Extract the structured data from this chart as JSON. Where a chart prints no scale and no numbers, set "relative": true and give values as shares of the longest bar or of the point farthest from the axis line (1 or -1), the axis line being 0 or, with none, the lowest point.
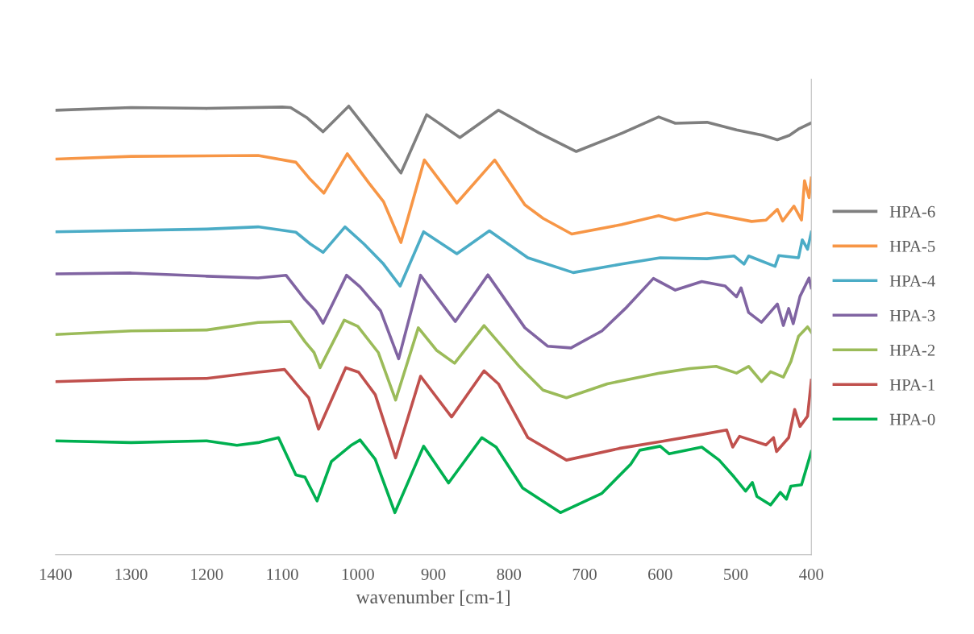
{
  "chart_data": {
    "type": "line",
    "xlabel": "wavenumber [cm-1]",
    "relative": true,
    "xlim": [
      1400,
      400
    ],
    "xticks": [
      1400,
      1300,
      1200,
      1100,
      1000,
      900,
      800,
      700,
      600,
      500,
      400
    ],
    "tick_labels": "x",
    "grid": false,
    "legend": "right",
    "marker": "none",
    "line_style": "solid",
    "series": [
      {
        "name": "HPA-6",
        "color": "#7f7f7f",
        "x": [
          1400,
          1300,
          1200,
          1100,
          1089,
          1068,
          1046,
          1012,
          977,
          943,
          909,
          865,
          814,
          760,
          711,
          650,
          602,
          580,
          538,
          499,
          464,
          445,
          429,
          417,
          401
        ],
        "values": [
          0.991,
          0.997,
          0.995,
          0.998,
          0.997,
          0.975,
          0.943,
          1.0,
          0.925,
          0.851,
          0.981,
          0.93,
          0.991,
          0.94,
          0.899,
          0.94,
          0.976,
          0.962,
          0.964,
          0.947,
          0.935,
          0.925,
          0.935,
          0.949,
          0.962
        ]
      },
      {
        "name": "HPA-5",
        "color": "#f79646",
        "x": [
          1400,
          1300,
          1132,
          1082,
          1063,
          1045,
          1014,
          985,
          966,
          943,
          912,
          869,
          819,
          779,
          755,
          717,
          651,
          602,
          580,
          538,
          479,
          460,
          445,
          438,
          423,
          413,
          409,
          403,
          400
        ],
        "values": [
          0.882,
          0.888,
          0.89,
          0.875,
          0.837,
          0.806,
          0.894,
          0.828,
          0.787,
          0.696,
          0.88,
          0.784,
          0.88,
          0.78,
          0.75,
          0.715,
          0.736,
          0.756,
          0.746,
          0.762,
          0.743,
          0.746,
          0.77,
          0.744,
          0.777,
          0.746,
          0.834,
          0.796,
          0.84
        ]
      },
      {
        "name": "HPA-4",
        "color": "#4bacc6",
        "x": [
          1400,
          1200,
          1132,
          1082,
          1063,
          1046,
          1017,
          992,
          967,
          944,
          913,
          869,
          826,
          775,
          715,
          651,
          600,
          538,
          502,
          489,
          483,
          448,
          443,
          417,
          412,
          405,
          400
        ],
        "values": [
          0.72,
          0.726,
          0.731,
          0.719,
          0.693,
          0.674,
          0.731,
          0.693,
          0.65,
          0.599,
          0.72,
          0.671,
          0.722,
          0.662,
          0.629,
          0.648,
          0.662,
          0.66,
          0.666,
          0.648,
          0.666,
          0.643,
          0.667,
          0.662,
          0.702,
          0.681,
          0.719
        ]
      },
      {
        "name": "HPA-3",
        "color": "#8064a2",
        "x": [
          1400,
          1300,
          1200,
          1132,
          1095,
          1070,
          1056,
          1046,
          1015,
          997,
          970,
          946,
          917,
          871,
          828,
          779,
          749,
          718,
          677,
          646,
          609,
          580,
          545,
          514,
          499,
          493,
          483,
          466,
          445,
          437,
          430,
          424,
          415,
          403,
          400
        ],
        "values": [
          0.626,
          0.628,
          0.621,
          0.617,
          0.623,
          0.569,
          0.544,
          0.516,
          0.623,
          0.597,
          0.544,
          0.437,
          0.623,
          0.52,
          0.624,
          0.506,
          0.465,
          0.461,
          0.499,
          0.549,
          0.616,
          0.59,
          0.609,
          0.599,
          0.575,
          0.595,
          0.54,
          0.518,
          0.559,
          0.511,
          0.549,
          0.515,
          0.576,
          0.617,
          0.595
        ]
      },
      {
        "name": "HPA-2",
        "color": "#9bbb59",
        "x": [
          1400,
          1300,
          1200,
          1132,
          1089,
          1070,
          1058,
          1050,
          1018,
          1000,
          973,
          950,
          920,
          896,
          872,
          833,
          786,
          755,
          724,
          670,
          600,
          561,
          526,
          499,
          483,
          466,
          454,
          437,
          427,
          417,
          405,
          400
        ],
        "values": [
          0.491,
          0.499,
          0.501,
          0.518,
          0.52,
          0.475,
          0.451,
          0.417,
          0.523,
          0.509,
          0.451,
          0.345,
          0.506,
          0.456,
          0.427,
          0.511,
          0.419,
          0.367,
          0.35,
          0.381,
          0.405,
          0.415,
          0.42,
          0.405,
          0.42,
          0.386,
          0.408,
          0.396,
          0.431,
          0.487,
          0.508,
          0.496
        ]
      },
      {
        "name": "HPA-1",
        "color": "#c0504d",
        "x": [
          1400,
          1300,
          1200,
          1132,
          1097,
          1073,
          1065,
          1052,
          1016,
          999,
          977,
          950,
          917,
          876,
          833,
          814,
          775,
          724,
          654,
          600,
          545,
          512,
          504,
          495,
          460,
          450,
          446,
          430,
          422,
          415,
          405,
          400
        ],
        "values": [
          0.386,
          0.391,
          0.393,
          0.407,
          0.413,
          0.365,
          0.35,
          0.28,
          0.417,
          0.407,
          0.357,
          0.216,
          0.398,
          0.307,
          0.41,
          0.381,
          0.261,
          0.211,
          0.237,
          0.252,
          0.268,
          0.278,
          0.24,
          0.264,
          0.245,
          0.261,
          0.23,
          0.261,
          0.324,
          0.286,
          0.309,
          0.389
        ]
      },
      {
        "name": "HPA-0",
        "color": "#00b050",
        "x": [
          1400,
          1300,
          1200,
          1160,
          1132,
          1105,
          1082,
          1070,
          1054,
          1035,
          1008,
          997,
          977,
          951,
          913,
          880,
          836,
          817,
          782,
          732,
          677,
          639,
          627,
          600,
          588,
          545,
          522,
          502,
          487,
          478,
          472,
          454,
          441,
          433,
          427,
          413,
          400
        ],
        "values": [
          0.254,
          0.25,
          0.254,
          0.244,
          0.25,
          0.261,
          0.178,
          0.173,
          0.12,
          0.208,
          0.245,
          0.256,
          0.213,
          0.094,
          0.242,
          0.16,
          0.261,
          0.24,
          0.149,
          0.094,
          0.137,
          0.202,
          0.233,
          0.242,
          0.225,
          0.24,
          0.211,
          0.173,
          0.142,
          0.161,
          0.13,
          0.111,
          0.139,
          0.124,
          0.153,
          0.156,
          0.23
        ]
      }
    ]
  }
}
